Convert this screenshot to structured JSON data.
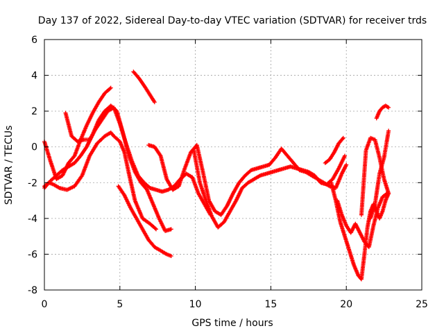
{
  "chart_data": {
    "type": "scatter",
    "title": "Day 137 of 2022, Sidereal Day-to-day VTEC variation (SDTVAR) for receiver trds",
    "xlabel": "GPS time / hours",
    "ylabel": "SDTVAR / TECUs",
    "xlim": [
      0,
      25
    ],
    "ylim": [
      -8,
      6
    ],
    "x_ticks": [
      "0",
      "5",
      "10",
      "15",
      "20",
      "25"
    ],
    "y_ticks": [
      "-8",
      "-6",
      "-4",
      "-2",
      "0",
      "2",
      "4",
      "6"
    ],
    "grid": true,
    "legend": "none",
    "marker": "+",
    "colors": {
      "series": "#ff0000"
    },
    "series": [
      {
        "x": [
          0.0,
          0.3,
          0.6,
          1.0,
          1.5,
          2.0,
          2.5,
          3.0,
          3.5,
          4.0,
          4.4,
          4.6,
          5.0,
          5.3,
          5.6,
          6.0,
          6.5,
          7.0,
          7.4
        ],
        "y": [
          -2.2,
          -2.0,
          -2.1,
          -2.3,
          -2.4,
          -2.2,
          -1.6,
          -0.5,
          0.2,
          0.6,
          0.8,
          0.6,
          0.3,
          -0.3,
          -1.5,
          -3.0,
          -4.0,
          -4.3,
          -4.6
        ]
      },
      {
        "x": [
          0.0,
          0.4,
          0.8,
          1.2,
          1.6,
          2.0,
          2.4,
          2.8,
          3.2,
          3.6,
          4.0,
          4.4
        ],
        "y": [
          0.3,
          -0.8,
          -1.8,
          -1.6,
          -0.9,
          -0.5,
          0.4,
          1.2,
          1.9,
          2.5,
          3.0,
          3.3
        ]
      },
      {
        "x": [
          0.0,
          0.4,
          0.8,
          1.2,
          1.6,
          2.0,
          2.4,
          2.8,
          3.2,
          3.6,
          4.0,
          4.4,
          4.8,
          5.2,
          5.6,
          6.0,
          6.4,
          6.8,
          7.2,
          7.6,
          8.0,
          8.4
        ],
        "y": [
          -2.3,
          -1.9,
          -1.6,
          -1.3,
          -1.1,
          -0.9,
          -0.5,
          0.0,
          0.7,
          1.5,
          2.0,
          2.3,
          2.0,
          0.8,
          -0.5,
          -1.4,
          -2.0,
          -2.4,
          -3.2,
          -4.0,
          -4.7,
          -4.6
        ]
      },
      {
        "x": [
          1.4,
          1.8,
          2.2,
          2.6,
          3.0,
          3.4,
          3.8,
          4.2,
          4.6,
          5.0,
          5.4,
          5.8,
          6.2,
          6.6,
          7.0,
          7.4,
          7.8,
          8.2,
          8.6,
          9.0,
          9.4,
          9.8,
          10.2,
          10.6,
          11.0
        ],
        "y": [
          1.9,
          0.6,
          0.3,
          0.4,
          0.4,
          1.0,
          1.5,
          2.0,
          2.2,
          1.3,
          0.2,
          -0.8,
          -1.6,
          -2.0,
          -2.3,
          -2.4,
          -2.5,
          -2.4,
          -2.2,
          -1.8,
          -1.5,
          -1.7,
          -2.6,
          -3.2,
          -3.8
        ]
      },
      {
        "x": [
          4.9,
          5.3,
          5.7,
          6.1,
          6.5,
          6.9,
          7.3,
          7.7,
          8.1,
          8.4
        ],
        "y": [
          -2.2,
          -2.7,
          -3.4,
          -4.0,
          -4.6,
          -5.2,
          -5.6,
          -5.8,
          -6.0,
          -6.1
        ]
      },
      {
        "x": [
          5.9,
          6.3,
          6.7,
          7.0,
          7.3
        ],
        "y": [
          4.2,
          3.8,
          3.3,
          2.9,
          2.5
        ]
      },
      {
        "x": [
          6.9,
          7.3,
          7.7,
          8.1,
          8.5,
          8.9,
          9.3,
          9.7,
          10.1,
          10.5,
          10.9,
          11.3,
          11.7,
          12.1,
          12.5,
          12.9,
          13.3,
          13.7,
          14.1,
          14.5,
          14.9,
          15.3,
          15.7,
          16.1,
          16.5,
          16.9,
          17.3,
          17.7,
          18.1,
          18.5,
          18.9,
          19.3,
          19.7,
          20.0
        ],
        "y": [
          0.1,
          0.0,
          -0.5,
          -1.8,
          -2.4,
          -2.2,
          -1.2,
          -0.3,
          0.1,
          -1.4,
          -3.0,
          -3.6,
          -3.8,
          -3.3,
          -2.6,
          -2.0,
          -1.6,
          -1.3,
          -1.2,
          -1.1,
          -1.0,
          -0.6,
          -0.1,
          -0.5,
          -0.9,
          -1.3,
          -1.4,
          -1.6,
          -1.8,
          -2.0,
          -2.2,
          -2.3,
          -1.5,
          -1.0
        ]
      },
      {
        "x": [
          9.9,
          10.3,
          10.7,
          11.1,
          11.5,
          11.9,
          12.3,
          12.7,
          13.1,
          13.5,
          13.9,
          14.3,
          14.7,
          15.1,
          15.5,
          15.9,
          16.3,
          16.7,
          17.1,
          17.5,
          17.9,
          18.3,
          18.7,
          19.1,
          19.5,
          19.9
        ],
        "y": [
          -0.2,
          -2.0,
          -3.0,
          -3.9,
          -4.5,
          -4.2,
          -3.6,
          -3.0,
          -2.3,
          -2.0,
          -1.8,
          -1.6,
          -1.5,
          -1.4,
          -1.3,
          -1.2,
          -1.1,
          -1.2,
          -1.3,
          -1.4,
          -1.6,
          -2.0,
          -2.1,
          -1.8,
          -1.2,
          -0.5
        ]
      },
      {
        "x": [
          19.0,
          19.3,
          19.6,
          19.9,
          20.2,
          20.5,
          20.8,
          21.0,
          21.2,
          21.4,
          21.6,
          21.8,
          22.0,
          22.2,
          22.4,
          22.6,
          22.8
        ],
        "y": [
          -2.0,
          -3.0,
          -4.2,
          -5.0,
          -5.8,
          -6.6,
          -7.2,
          -7.4,
          -6.0,
          -4.5,
          -3.6,
          -3.2,
          -3.6,
          -4.0,
          -3.6,
          -3.0,
          -2.6
        ]
      },
      {
        "x": [
          19.4,
          19.7,
          20.0,
          20.3,
          20.6,
          20.9,
          21.2,
          21.5,
          21.8,
          22.1,
          22.4,
          22.7
        ],
        "y": [
          -3.0,
          -3.8,
          -4.4,
          -4.8,
          -4.3,
          -4.8,
          -5.3,
          -5.6,
          -4.4,
          -3.4,
          -2.8,
          -2.6
        ]
      },
      {
        "x": [
          21.0,
          21.3,
          21.6,
          21.9,
          22.2,
          22.5,
          22.8
        ],
        "y": [
          -3.8,
          -0.2,
          0.5,
          0.4,
          -0.6,
          -1.8,
          -2.6
        ]
      },
      {
        "x": [
          21.6,
          21.9,
          22.2,
          22.5,
          22.8
        ],
        "y": [
          -4.0,
          -3.2,
          -1.5,
          -0.6,
          0.9
        ]
      },
      {
        "x": [
          22.0,
          22.2,
          22.4,
          22.6,
          22.8
        ],
        "y": [
          1.6,
          2.0,
          2.2,
          2.3,
          2.2
        ]
      },
      {
        "x": [
          18.6,
          18.9,
          19.2,
          19.5,
          19.8
        ],
        "y": [
          -0.9,
          -0.7,
          -0.3,
          0.2,
          0.5
        ]
      }
    ]
  }
}
